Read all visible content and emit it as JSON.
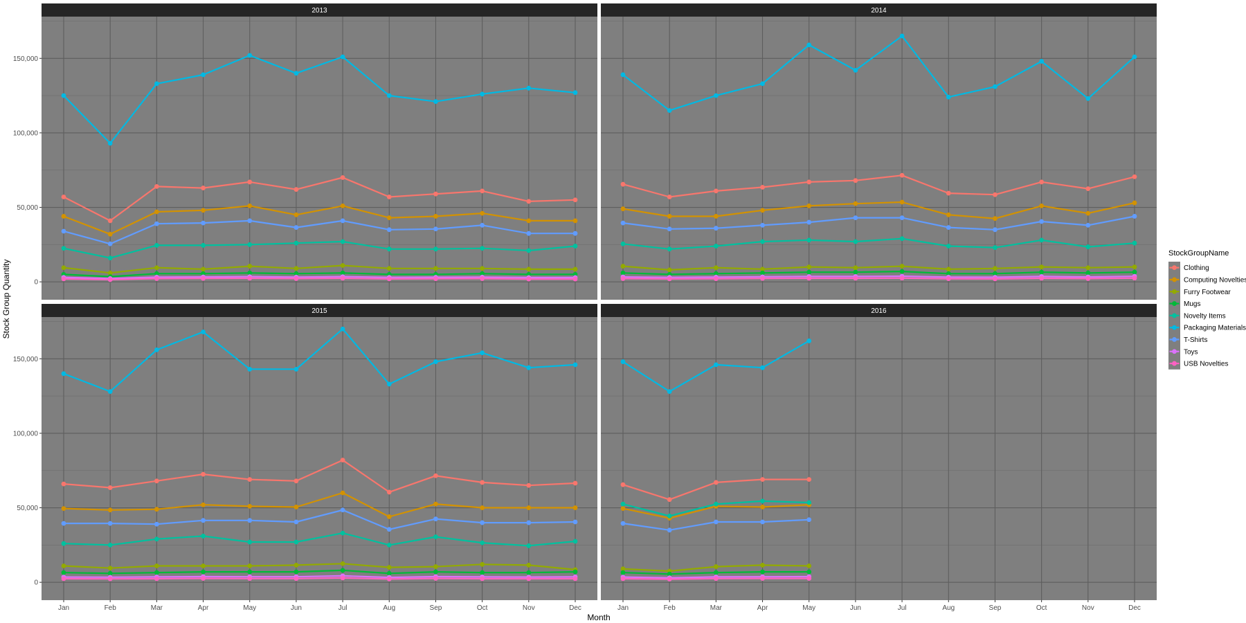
{
  "chart_data": {
    "type": "line",
    "xlabel": "Month",
    "ylabel": "Stock Group Quantity",
    "ylim": [
      -12000,
      178000
    ],
    "yticks": [
      0,
      50000,
      100000,
      150000
    ],
    "ytick_labels": [
      "0",
      "50,000",
      "100,000",
      "150,000"
    ],
    "categories": [
      "Jan",
      "Feb",
      "Mar",
      "Apr",
      "May",
      "Jun",
      "Jul",
      "Aug",
      "Sep",
      "Oct",
      "Nov",
      "Dec"
    ],
    "grid": true,
    "legend": {
      "title": "StockGroupName",
      "placement": "right",
      "entries": [
        "Clothing",
        "Computing Novelties",
        "Furry Footwear",
        "Mugs",
        "Novelty Items",
        "Packaging Materials",
        "T-Shirts",
        "Toys",
        "USB Novelties"
      ]
    },
    "colors": {
      "Clothing": "#F8766D",
      "Computing Novelties": "#D39200",
      "Furry Footwear": "#93AA00",
      "Mugs": "#00BA38",
      "Novelty Items": "#00C19F",
      "Packaging Materials": "#00B9E3",
      "T-Shirts": "#619CFF",
      "Toys": "#DB72FB",
      "USB Novelties": "#FF61C3"
    },
    "panel_background": "#7F7F7F",
    "strip_background": "#262626",
    "panels": [
      {
        "title": "2013",
        "series": [
          {
            "name": "Clothing",
            "values": [
              57000,
              41000,
              64000,
              63000,
              67000,
              62000,
              70000,
              57000,
              59000,
              61000,
              54000,
              55000
            ]
          },
          {
            "name": "Computing Novelties",
            "values": [
              44000,
              32000,
              47000,
              48000,
              51000,
              45000,
              51000,
              43000,
              44000,
              46000,
              41000,
              41000
            ]
          },
          {
            "name": "Furry Footwear",
            "values": [
              9500,
              6000,
              9500,
              8500,
              10500,
              9000,
              11000,
              9000,
              9000,
              9000,
              8500,
              8500
            ]
          },
          {
            "name": "Mugs",
            "values": [
              5000,
              3500,
              5500,
              5500,
              6000,
              5500,
              6000,
              5000,
              5000,
              5500,
              5000,
              5000
            ]
          },
          {
            "name": "Novelty Items",
            "values": [
              22500,
              16000,
              24500,
              24500,
              25000,
              26000,
              27000,
              22000,
              22000,
              22500,
              21000,
              24000
            ]
          },
          {
            "name": "Packaging Materials",
            "values": [
              125000,
              93000,
              133000,
              139000,
              152000,
              140000,
              151000,
              125000,
              121000,
              126000,
              130000,
              127000
            ]
          },
          {
            "name": "T-Shirts",
            "values": [
              34000,
              25500,
              39000,
              39500,
              41000,
              36500,
              41000,
              35000,
              35500,
              38000,
              32500,
              32500
            ]
          },
          {
            "name": "Toys",
            "values": [
              3000,
              2200,
              3200,
              3300,
              3500,
              3200,
              3500,
              3000,
              3100,
              3200,
              2900,
              2900
            ]
          },
          {
            "name": "USB Novelties",
            "values": [
              2000,
              1500,
              2200,
              2300,
              2400,
              2200,
              2400,
              2000,
              2100,
              2200,
              1900,
              1900
            ]
          }
        ]
      },
      {
        "title": "2014",
        "series": [
          {
            "name": "Clothing",
            "values": [
              65500,
              57000,
              61000,
              63500,
              67000,
              68000,
              71500,
              59500,
              58500,
              67000,
              62500,
              70500
            ]
          },
          {
            "name": "Computing Novelties",
            "values": [
              49000,
              44000,
              44000,
              48000,
              51000,
              52500,
              53500,
              45000,
              42500,
              51000,
              46000,
              53000
            ]
          },
          {
            "name": "Furry Footwear",
            "values": [
              10500,
              8000,
              9500,
              8500,
              10000,
              9500,
              10500,
              8500,
              9000,
              10000,
              9500,
              10000
            ]
          },
          {
            "name": "Mugs",
            "values": [
              6000,
              5000,
              5500,
              6000,
              6500,
              6500,
              7000,
              5500,
              5500,
              6500,
              6000,
              6500
            ]
          },
          {
            "name": "Novelty Items",
            "values": [
              25500,
              22000,
              24000,
              27000,
              28000,
              27000,
              29000,
              24000,
              23000,
              28000,
              23500,
              26000
            ]
          },
          {
            "name": "Packaging Materials",
            "values": [
              139000,
              115000,
              125000,
              133000,
              159000,
              142000,
              165000,
              124000,
              131000,
              148000,
              123000,
              151000
            ]
          },
          {
            "name": "T-Shirts",
            "values": [
              39500,
              35500,
              36000,
              38000,
              40000,
              43000,
              43000,
              36500,
              35000,
              40500,
              38000,
              44000
            ]
          },
          {
            "name": "Toys",
            "values": [
              3300,
              3000,
              3200,
              3400,
              3600,
              3600,
              3800,
              3200,
              3100,
              3600,
              3300,
              3700
            ]
          },
          {
            "name": "USB Novelties",
            "values": [
              2200,
              2000,
              2100,
              2300,
              2400,
              2400,
              2500,
              2100,
              2000,
              2400,
              2200,
              2500
            ]
          }
        ]
      },
      {
        "title": "2015",
        "series": [
          {
            "name": "Clothing",
            "values": [
              66000,
              63500,
              68000,
              72500,
              69000,
              68000,
              82000,
              60500,
              71500,
              67000,
              65000,
              66500
            ]
          },
          {
            "name": "Computing Novelties",
            "values": [
              49500,
              48500,
              49000,
              52000,
              51000,
              50500,
              60000,
              44000,
              52500,
              50000,
              50000,
              50000
            ]
          },
          {
            "name": "Furry Footwear",
            "values": [
              11000,
              9500,
              11000,
              11000,
              11000,
              11500,
              12500,
              10000,
              10500,
              12000,
              11500,
              8500
            ]
          },
          {
            "name": "Mugs",
            "values": [
              6500,
              6000,
              6500,
              7000,
              7000,
              7000,
              8000,
              6000,
              7000,
              6500,
              6500,
              7000
            ]
          },
          {
            "name": "Novelty Items",
            "values": [
              26000,
              25000,
              29000,
              31000,
              27000,
              27000,
              33000,
              25000,
              30500,
              26500,
              24500,
              27500
            ]
          },
          {
            "name": "Packaging Materials",
            "values": [
              140000,
              128000,
              156000,
              168000,
              143000,
              143000,
              170000,
              133000,
              148000,
              154000,
              144000,
              146000
            ]
          },
          {
            "name": "T-Shirts",
            "values": [
              39500,
              39500,
              39000,
              41500,
              41500,
              40500,
              48500,
              35500,
              42500,
              40000,
              40000,
              40500
            ]
          },
          {
            "name": "Toys",
            "values": [
              3500,
              3400,
              3600,
              3800,
              3700,
              3700,
              4300,
              3300,
              3800,
              3600,
              3500,
              3600
            ]
          },
          {
            "name": "USB Novelties",
            "values": [
              2400,
              2300,
              2400,
              2600,
              2500,
              2500,
              2900,
              2200,
              2600,
              2400,
              2400,
              2400
            ]
          }
        ]
      },
      {
        "title": "2016",
        "series": [
          {
            "name": "Clothing",
            "values": [
              65500,
              55500,
              67000,
              69000,
              69000
            ]
          },
          {
            "name": "Computing Novelties",
            "values": [
              49500,
              43000,
              51000,
              50500,
              52000
            ]
          },
          {
            "name": "Furry Footwear",
            "values": [
              9000,
              7500,
              10500,
              11500,
              11000
            ]
          },
          {
            "name": "Mugs",
            "values": [
              6500,
              5500,
              6500,
              7000,
              7000
            ]
          },
          {
            "name": "Novelty Items",
            "values": [
              52500,
              44500,
              52500,
              54500,
              53500
            ]
          },
          {
            "name": "Packaging Materials",
            "values": [
              148000,
              128000,
              146000,
              144000,
              162000
            ]
          },
          {
            "name": "T-Shirts",
            "values": [
              39500,
              35000,
              40500,
              40500,
              42000
            ]
          },
          {
            "name": "Toys",
            "values": [
              3500,
              3000,
              3600,
              3700,
              3800
            ]
          },
          {
            "name": "USB Novelties",
            "values": [
              2400,
              2100,
              2500,
              2600,
              2600
            ]
          }
        ]
      }
    ]
  }
}
